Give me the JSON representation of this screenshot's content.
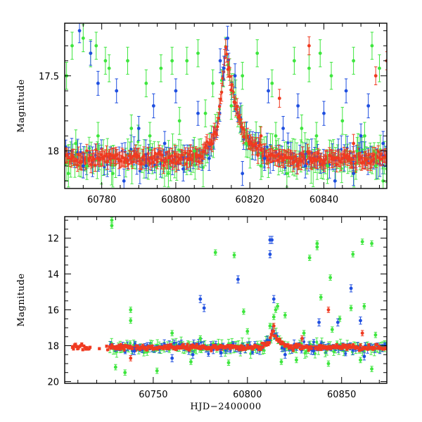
{
  "colors": {
    "green": "#3ee63e",
    "blue": "#1f4fe0",
    "red": "#f03a20",
    "axis": "#000000"
  },
  "chart_data": [
    {
      "type": "scatter",
      "panel": "top",
      "xlabel": "",
      "ylabel": "Magnitude",
      "xlim": [
        60770,
        60857
      ],
      "ylim": [
        18.25,
        17.15
      ],
      "y_inverted": true,
      "x_major_ticks": [
        60780,
        60800,
        60820,
        60840
      ],
      "x_tick_labels": [
        "60780",
        "60800",
        "60820",
        "60840"
      ],
      "x_minor_step": 5,
      "y_major_ticks": [
        17.5,
        18
      ],
      "y_tick_labels": [
        "17.5",
        "18"
      ],
      "y_minor_step": 0.1,
      "baseline_mag": 18.05,
      "series": [
        {
          "color_key": "green",
          "error": 0.09,
          "points": [
            [
              60770.5,
              17.5
            ],
            [
              60772,
              17.3
            ],
            [
              60775,
              17.25
            ],
            [
              60777,
              17.35
            ],
            [
              60778.5,
              17.3
            ],
            [
              60781,
              17.4
            ],
            [
              60782,
              17.45
            ],
            [
              60787,
              17.4
            ],
            [
              60792,
              17.55
            ],
            [
              60796,
              17.45
            ],
            [
              60799,
              17.4
            ],
            [
              60803,
              17.4
            ],
            [
              60806,
              17.35
            ],
            [
              60810,
              17.55
            ],
            [
              60818,
              17.5
            ],
            [
              60822,
              17.35
            ],
            [
              60826,
              17.55
            ],
            [
              60832,
              17.4
            ],
            [
              60836,
              17.45
            ],
            [
              60839,
              17.35
            ],
            [
              60842,
              17.5
            ],
            [
              60848,
              17.4
            ],
            [
              60853,
              17.3
            ],
            [
              60855,
              17.45
            ],
            [
              60771,
              18.15
            ],
            [
              60773,
              17.95
            ],
            [
              60776,
              18.1
            ],
            [
              60779,
              17.9
            ],
            [
              60783,
              18.15
            ],
            [
              60788,
              17.85
            ],
            [
              60793,
              17.9
            ],
            [
              60798,
              18.15
            ],
            [
              60801,
              17.8
            ],
            [
              60805,
              18.0
            ],
            [
              60808,
              17.75
            ],
            [
              60815,
              17.7
            ],
            [
              60819,
              17.95
            ],
            [
              60823,
              18.1
            ],
            [
              60827,
              17.9
            ],
            [
              60830,
              18.15
            ],
            [
              60834,
              17.85
            ],
            [
              60838,
              17.9
            ],
            [
              60841,
              18.1
            ],
            [
              60845,
              17.8
            ],
            [
              60849,
              18.0
            ],
            [
              60851,
              17.9
            ],
            [
              60854,
              18.1
            ],
            [
              60856,
              18.2
            ]
          ]
        },
        {
          "color_key": "blue",
          "error": 0.08,
          "points": [
            [
              60774,
              17.2
            ],
            [
              60777,
              17.35
            ],
            [
              60779,
              17.55
            ],
            [
              60784,
              17.6
            ],
            [
              60790,
              17.85
            ],
            [
              60794,
              17.7
            ],
            [
              60797,
              17.95
            ],
            [
              60800,
              17.6
            ],
            [
              60806,
              17.75
            ],
            [
              60812,
              17.4
            ],
            [
              60813,
              17.45
            ],
            [
              60814,
              17.25
            ],
            [
              60816,
              17.5
            ],
            [
              60825,
              17.6
            ],
            [
              60829,
              17.85
            ],
            [
              60833,
              17.7
            ],
            [
              60840,
              17.75
            ],
            [
              60846,
              17.6
            ],
            [
              60850,
              17.9
            ],
            [
              60852,
              17.7
            ],
            [
              60856,
              17.95
            ],
            [
              60775,
              18.1
            ],
            [
              60786,
              18.2
            ],
            [
              60792,
              18.1
            ],
            [
              60802,
              18.12
            ],
            [
              60809,
              18.05
            ],
            [
              60818,
              18.15
            ],
            [
              60824,
              18.05
            ],
            [
              60835,
              18.1
            ],
            [
              60843,
              18.2
            ],
            [
              60848,
              18.15
            ]
          ]
        },
        {
          "color_key": "red",
          "error": 0.06,
          "points": [
            [
              60823,
              17.9
            ],
            [
              60828,
              17.65
            ],
            [
              60836,
              17.3
            ],
            [
              60848,
              17.95
            ],
            [
              60854,
              17.5
            ],
            [
              60857,
              17.4
            ]
          ]
        }
      ]
    },
    {
      "type": "scatter",
      "panel": "bottom",
      "xlabel": "HJD−2400000",
      "ylabel": "Magnitude",
      "xlim": [
        60703,
        60874
      ],
      "ylim": [
        20.1,
        10.8
      ],
      "y_inverted": true,
      "x_major_ticks": [
        60750,
        60800,
        60850
      ],
      "x_tick_labels": [
        "60750",
        "60800",
        "60850"
      ],
      "x_minor_step": 10,
      "y_major_ticks": [
        12,
        14,
        16,
        18,
        20
      ],
      "y_tick_labels": [
        "12",
        "14",
        "16",
        "18",
        "20"
      ],
      "y_minor_step": 0.5,
      "baseline_mag": 18.1,
      "series": [
        {
          "color_key": "green",
          "error": 0.15,
          "points": [
            [
              60728,
              11.0
            ],
            [
              60728,
              11.3
            ],
            [
              60738,
              16.0
            ],
            [
              60738,
              16.6
            ],
            [
              60783,
              12.8
            ],
            [
              60793,
              12.95
            ],
            [
              60798,
              16.1
            ],
            [
              60814,
              16.4
            ],
            [
              60815,
              16.0
            ],
            [
              60816,
              15.8
            ],
            [
              60820,
              16.3
            ],
            [
              60833,
              13.1
            ],
            [
              60837,
              12.5
            ],
            [
              60837,
              12.3
            ],
            [
              60839,
              15.3
            ],
            [
              60844,
              14.2
            ],
            [
              60849,
              16.5
            ],
            [
              60855,
              15.9
            ],
            [
              60856,
              12.9
            ],
            [
              60861,
              12.2
            ],
            [
              60866,
              12.3
            ],
            [
              60862,
              15.8
            ],
            [
              60730,
              19.2
            ],
            [
              60735,
              19.5
            ],
            [
              60752,
              19.4
            ],
            [
              60770,
              18.9
            ],
            [
              60790,
              18.95
            ],
            [
              60818,
              18.9
            ],
            [
              60826,
              18.8
            ],
            [
              60843,
              19.0
            ],
            [
              60860,
              18.8
            ],
            [
              60866,
              19.3
            ],
            [
              60760,
              17.3
            ],
            [
              60775,
              17.6
            ],
            [
              60800,
              17.2
            ],
            [
              60812,
              16.9
            ],
            [
              60830,
              17.3
            ],
            [
              60845,
              17.1
            ],
            [
              60868,
              17.4
            ]
          ]
        },
        {
          "color_key": "blue",
          "error": 0.2,
          "points": [
            [
              60775,
              15.4
            ],
            [
              60777,
              15.9
            ],
            [
              60795,
              14.3
            ],
            [
              60812,
              12.1
            ],
            [
              60812,
              12.9
            ],
            [
              60813,
              12.1
            ],
            [
              60814,
              15.4
            ],
            [
              60838,
              16.7
            ],
            [
              60848,
              16.7
            ],
            [
              60855,
              14.8
            ],
            [
              60860,
              16.6
            ],
            [
              60760,
              18.7
            ],
            [
              60771,
              18.5
            ],
            [
              60786,
              18.4
            ],
            [
              60820,
              18.5
            ],
            [
              60835,
              18.3
            ],
            [
              60862,
              18.6
            ],
            [
              60740,
              18.3
            ]
          ]
        },
        {
          "color_key": "red",
          "error": 0.15,
          "points": [
            [
              60738,
              18.7
            ],
            [
              60814,
              16.9
            ],
            [
              60829,
              17.6
            ],
            [
              60843,
              16.0
            ],
            [
              60861,
              17.3
            ]
          ]
        }
      ]
    }
  ]
}
